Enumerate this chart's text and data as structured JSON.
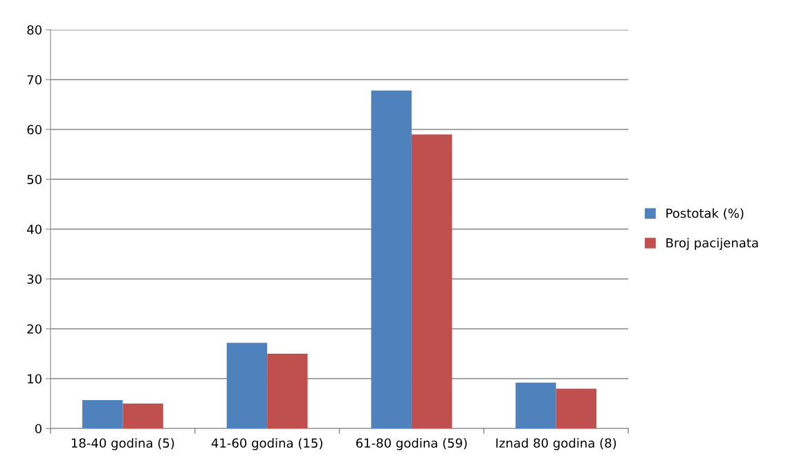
{
  "chart_data": {
    "type": "bar",
    "categories": [
      "18-40 godina (5)",
      "41-60 godina (15)",
      "61-80 godina (59)",
      "Iznad 80 godina (8)"
    ],
    "series": [
      {
        "name": "Postotak (%)",
        "color": "#4f81bd",
        "values": [
          5.7,
          17.2,
          67.8,
          9.2
        ]
      },
      {
        "name": "Broj pacijenata",
        "color": "#c0504d",
        "values": [
          5,
          15,
          59,
          8
        ]
      }
    ],
    "ylim": [
      0,
      80
    ],
    "yticks": [
      0,
      10,
      20,
      30,
      40,
      50,
      60,
      70,
      80
    ],
    "grid": "y",
    "legend": "right"
  }
}
